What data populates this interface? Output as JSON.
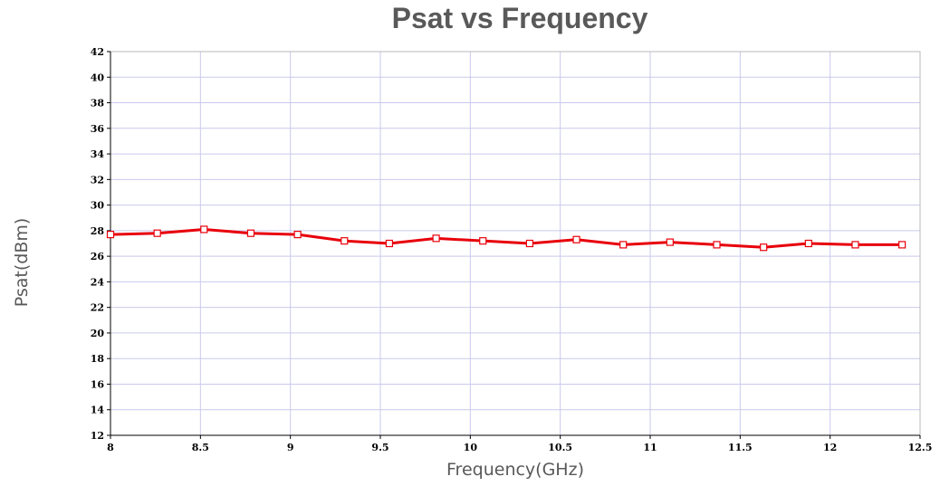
{
  "chart_data": {
    "type": "line",
    "title": "Psat vs Frequency",
    "xlabel": "Frequency(GHz)",
    "ylabel": "Psat(dBm)",
    "xlim": [
      8,
      12.5
    ],
    "ylim": [
      12,
      42
    ],
    "x_ticks": [
      "8",
      "8.5",
      "9",
      "9.5",
      "10",
      "10.5",
      "11",
      "11.5",
      "12",
      "12.5"
    ],
    "y_ticks": [
      "12",
      "14",
      "16",
      "18",
      "20",
      "22",
      "24",
      "26",
      "28",
      "30",
      "32",
      "34",
      "36",
      "38",
      "40",
      "42"
    ],
    "grid": true,
    "series": [
      {
        "color": "#e8000b",
        "marker": "square",
        "x": [
          8.0,
          8.26,
          8.52,
          8.78,
          9.04,
          9.3,
          9.55,
          9.81,
          10.07,
          10.33,
          10.59,
          10.85,
          11.11,
          11.37,
          11.63,
          11.88,
          12.14,
          12.4
        ],
        "y": [
          27.7,
          27.8,
          28.1,
          27.8,
          27.7,
          27.2,
          27.0,
          27.4,
          27.2,
          27.0,
          27.3,
          26.9,
          27.1,
          26.9,
          26.7,
          27.0,
          26.9,
          26.9
        ]
      }
    ]
  }
}
